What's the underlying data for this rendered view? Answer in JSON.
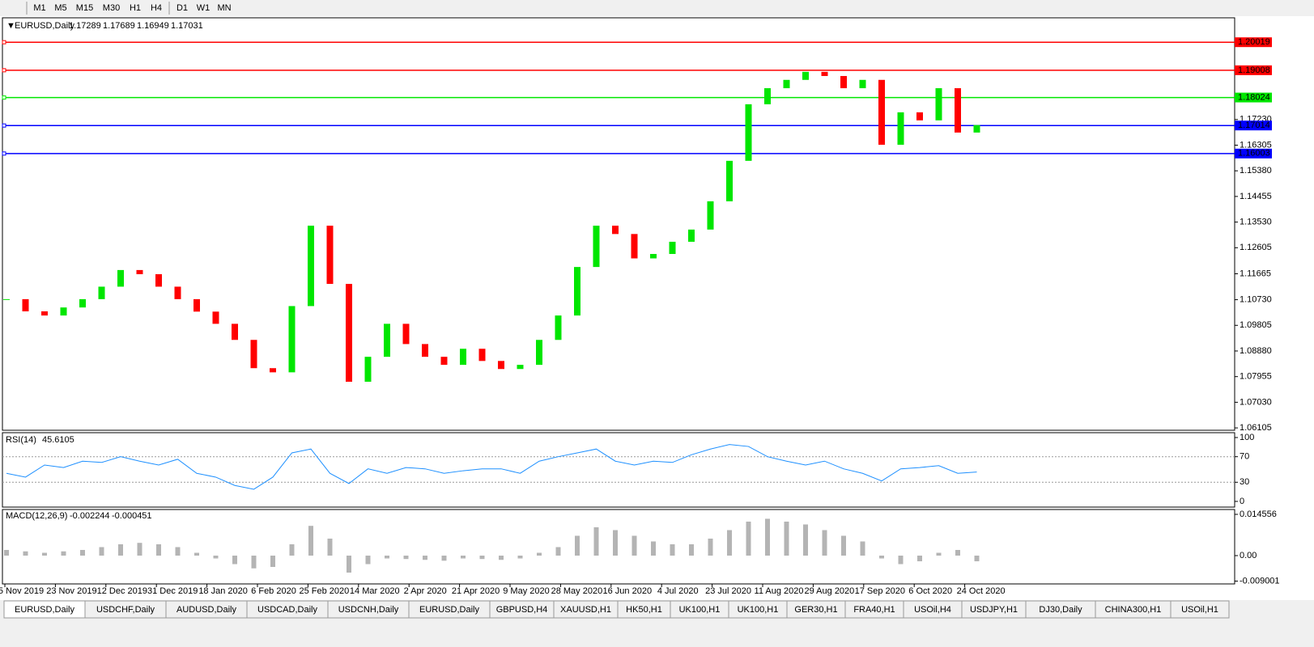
{
  "toolbar": {
    "timeframes": [
      "M1",
      "M5",
      "M15",
      "M30",
      "H1",
      "H4",
      "D1",
      "W1",
      "MN"
    ]
  },
  "main": {
    "header": {
      "symbol": "EURUSD,Daily",
      "open": "1.17289",
      "high": "1.17689",
      "low": "1.16949",
      "close": "1.17031"
    },
    "ylim": [
      1.0602,
      1.209
    ],
    "yticks": [
      {
        "value": 1.1723,
        "label": "1.17230"
      },
      {
        "value": 1.16305,
        "label": "1.16305"
      },
      {
        "value": 1.1538,
        "label": "1.15380"
      },
      {
        "value": 1.14455,
        "label": "1.14455"
      },
      {
        "value": 1.1353,
        "label": "1.13530"
      },
      {
        "value": 1.12605,
        "label": "1.12605"
      },
      {
        "value": 1.11665,
        "label": "1.11665"
      },
      {
        "value": 1.1073,
        "label": "1.10730"
      },
      {
        "value": 1.09805,
        "label": "1.09805"
      },
      {
        "value": 1.0888,
        "label": "1.08880"
      },
      {
        "value": 1.07955,
        "label": "1.07955"
      },
      {
        "value": 1.0703,
        "label": "1.07030"
      },
      {
        "value": 1.06105,
        "label": "1.06105"
      }
    ],
    "levels": [
      {
        "value": 1.20019,
        "label": "1.20019",
        "color": "#ff0000"
      },
      {
        "value": 1.19008,
        "label": "1.19008",
        "color": "#ff0000"
      },
      {
        "value": 1.18024,
        "label": "1.18024",
        "color": "#00e600"
      },
      {
        "value": 1.17014,
        "label": "1.17014",
        "color": "#0000ff"
      },
      {
        "value": 1.16003,
        "label": "1.16003",
        "color": "#0000ff"
      }
    ],
    "closes": [
      1.1075,
      1.1031,
      1.1016,
      1.1045,
      1.1075,
      1.112,
      1.118,
      1.1165,
      1.112,
      1.1075,
      1.103,
      1.0986,
      1.0928,
      1.0826,
      1.0811,
      1.105,
      1.134,
      1.113,
      1.0777,
      1.0867,
      1.0986,
      1.0913,
      1.0867,
      1.0838,
      1.0896,
      1.0852,
      1.0823,
      1.0838,
      1.0928,
      1.1016,
      1.1191,
      1.134,
      1.131,
      1.1222,
      1.1238,
      1.1282,
      1.1326,
      1.1428,
      1.1574,
      1.1778,
      1.1836,
      1.1866,
      1.1895,
      1.188,
      1.1836,
      1.1866,
      1.1632,
      1.1749,
      1.172,
      1.1836,
      1.1676,
      1.1703
    ],
    "up_color": "#00e600",
    "down_color": "#ff0000"
  },
  "rsi": {
    "name": "RSI(14)",
    "value": "45.6105",
    "ylim": [
      -8.9,
      107.6
    ],
    "yticks": [
      100,
      70,
      30,
      0
    ],
    "levels": [
      70,
      30
    ],
    "values": [
      44,
      38,
      57,
      53,
      63,
      61,
      70,
      63,
      57,
      66,
      44,
      38,
      25,
      19,
      38,
      76,
      82,
      44,
      28,
      51,
      44,
      53,
      51,
      44,
      48,
      51,
      51,
      44,
      63,
      70,
      76,
      82,
      63,
      57,
      63,
      61,
      73,
      82,
      89,
      86,
      70,
      63,
      57,
      63,
      51,
      44,
      32,
      51,
      53,
      56,
      44,
      46
    ],
    "color": "#1e90ff"
  },
  "macd": {
    "name": "MACD(12,26,9)",
    "main": "-0.002244",
    "signal": "-0.000451",
    "ylim": [
      -0.00999,
      0.01627
    ],
    "yticks": [
      {
        "value": 0.014556,
        "label": "0.014556"
      },
      {
        "value": 0,
        "label": "0.00"
      },
      {
        "value": -0.009001,
        "label": "-0.009001"
      }
    ],
    "values": [
      0.002,
      0.0015,
      0.001,
      0.0015,
      0.002,
      0.003,
      0.004,
      0.0045,
      0.004,
      0.003,
      0.001,
      -0.001,
      -0.003,
      -0.0045,
      -0.004,
      0.004,
      0.0105,
      0.006,
      -0.006,
      -0.003,
      -0.001,
      -0.0012,
      -0.0015,
      -0.0018,
      -0.001,
      -0.0012,
      -0.0015,
      -0.001,
      0.001,
      0.003,
      0.007,
      0.01,
      0.009,
      0.007,
      0.005,
      0.004,
      0.004,
      0.006,
      0.009,
      0.012,
      0.013,
      0.012,
      0.011,
      0.009,
      0.007,
      0.005,
      -0.001,
      -0.003,
      -0.002,
      0.001,
      0.002,
      -0.002
    ],
    "color": "#b4b4b4",
    "signal_color": "#ff0000"
  },
  "dates": [
    "5 Nov 2019",
    "23 Nov 2019",
    "12 Dec 2019",
    "31 Dec 2019",
    "18 Jan 2020",
    "6 Feb 2020",
    "25 Feb 2020",
    "14 Mar 2020",
    "2 Apr 2020",
    "21 Apr 2020",
    "9 May 2020",
    "28 May 2020",
    "16 Jun 2020",
    "4 Jul 2020",
    "23 Jul 2020",
    "11 Aug 2020",
    "29 Aug 2020",
    "17 Sep 2020",
    "6 Oct 2020",
    "24 Oct 2020"
  ],
  "tabs": [
    "EURUSD,Daily",
    "USDCHF,Daily",
    "AUDUSD,Daily",
    "USDCAD,Daily",
    "USDCNH,Daily",
    "EURUSD,Daily",
    "GBPUSD,H4",
    "XAUUSD,H1",
    "HK50,H1",
    "UK100,H1",
    "UK100,H1",
    "GER30,H1",
    "FRA40,H1",
    "USOil,H4",
    "USDJPY,H1",
    "DJ30,Daily",
    "CHINA300,H1",
    "USOil,H1"
  ]
}
